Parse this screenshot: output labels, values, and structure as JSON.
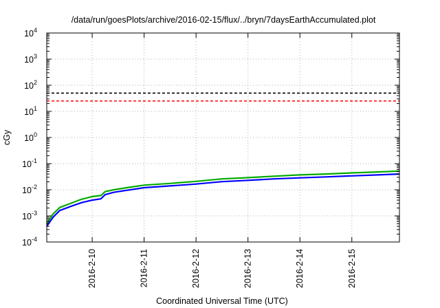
{
  "chart_data": {
    "type": "line",
    "title": "/data/run/goesPlots/archive/2016-02-15/flux/../bryn/7daysEarthAccumulated.plot",
    "xlabel": "Coordinated Universal Time (UTC)",
    "ylabel": "cGy",
    "x_type": "date",
    "xlim": [
      "2016-02-09T03:00",
      "2016-02-15T22:00"
    ],
    "ylim": [
      0.0001,
      10000
    ],
    "y_scale": "log",
    "grid": true,
    "x_ticks": [
      {
        "x": "2016-02-10T00:00",
        "label": "2016-2-10"
      },
      {
        "x": "2016-02-11T00:00",
        "label": "2016-2-11"
      },
      {
        "x": "2016-02-12T00:00",
        "label": "2016-2-12"
      },
      {
        "x": "2016-02-13T00:00",
        "label": "2016-2-13"
      },
      {
        "x": "2016-02-14T00:00",
        "label": "2016-2-14"
      },
      {
        "x": "2016-02-15T00:00",
        "label": "2016-2-15"
      }
    ],
    "y_ticks": [
      {
        "value": 0.0001,
        "base": "10",
        "exp": "-4"
      },
      {
        "value": 0.001,
        "base": "10",
        "exp": "-3"
      },
      {
        "value": 0.01,
        "base": "10",
        "exp": "-2"
      },
      {
        "value": 0.1,
        "base": "10",
        "exp": "-1"
      },
      {
        "value": 1,
        "base": "10",
        "exp": "0"
      },
      {
        "value": 10,
        "base": "10",
        "exp": "1"
      },
      {
        "value": 100,
        "base": "10",
        "exp": "2"
      },
      {
        "value": 1000,
        "base": "10",
        "exp": "3"
      },
      {
        "value": 10000,
        "base": "10",
        "exp": "4"
      }
    ],
    "reference_lines": [
      {
        "y": 50,
        "color": "#000000",
        "style": "dashed"
      },
      {
        "y": 25,
        "color": "#ff0000",
        "style": "dashed"
      }
    ],
    "series": [
      {
        "color": "#00aa00",
        "points": [
          {
            "x": "2016-02-09T03:00",
            "y": 0.0005
          },
          {
            "x": "2016-02-09T06:00",
            "y": 0.0012
          },
          {
            "x": "2016-02-09T09:00",
            "y": 0.0021
          },
          {
            "x": "2016-02-09T14:00",
            "y": 0.003
          },
          {
            "x": "2016-02-09T19:00",
            "y": 0.0043
          },
          {
            "x": "2016-02-10T00:00",
            "y": 0.0055
          },
          {
            "x": "2016-02-10T04:00",
            "y": 0.006
          },
          {
            "x": "2016-02-10T06:00",
            "y": 0.0085
          },
          {
            "x": "2016-02-10T10:00",
            "y": 0.01
          },
          {
            "x": "2016-02-10T16:00",
            "y": 0.012
          },
          {
            "x": "2016-02-11T00:00",
            "y": 0.015
          },
          {
            "x": "2016-02-11T12:00",
            "y": 0.0175
          },
          {
            "x": "2016-02-12T00:00",
            "y": 0.021
          },
          {
            "x": "2016-02-12T12:00",
            "y": 0.026
          },
          {
            "x": "2016-02-13T00:00",
            "y": 0.029
          },
          {
            "x": "2016-02-13T12:00",
            "y": 0.033
          },
          {
            "x": "2016-02-14T00:00",
            "y": 0.037
          },
          {
            "x": "2016-02-14T12:00",
            "y": 0.04
          },
          {
            "x": "2016-02-15T00:00",
            "y": 0.044
          },
          {
            "x": "2016-02-15T12:00",
            "y": 0.048
          },
          {
            "x": "2016-02-15T22:00",
            "y": 0.052
          }
        ]
      },
      {
        "color": "#0000ff",
        "points": [
          {
            "x": "2016-02-09T03:00",
            "y": 0.0004
          },
          {
            "x": "2016-02-09T06:00",
            "y": 0.0009
          },
          {
            "x": "2016-02-09T09:00",
            "y": 0.0016
          },
          {
            "x": "2016-02-09T14:00",
            "y": 0.0023
          },
          {
            "x": "2016-02-09T19:00",
            "y": 0.0032
          },
          {
            "x": "2016-02-10T00:00",
            "y": 0.004
          },
          {
            "x": "2016-02-10T04:00",
            "y": 0.0045
          },
          {
            "x": "2016-02-10T06:00",
            "y": 0.0065
          },
          {
            "x": "2016-02-10T10:00",
            "y": 0.008
          },
          {
            "x": "2016-02-10T16:00",
            "y": 0.0095
          },
          {
            "x": "2016-02-11T00:00",
            "y": 0.012
          },
          {
            "x": "2016-02-11T12:00",
            "y": 0.014
          },
          {
            "x": "2016-02-12T00:00",
            "y": 0.0165
          },
          {
            "x": "2016-02-12T12:00",
            "y": 0.0205
          },
          {
            "x": "2016-02-13T00:00",
            "y": 0.023
          },
          {
            "x": "2016-02-13T12:00",
            "y": 0.026
          },
          {
            "x": "2016-02-14T00:00",
            "y": 0.0285
          },
          {
            "x": "2016-02-14T12:00",
            "y": 0.031
          },
          {
            "x": "2016-02-15T00:00",
            "y": 0.034
          },
          {
            "x": "2016-02-15T12:00",
            "y": 0.037
          },
          {
            "x": "2016-02-15T22:00",
            "y": 0.04
          }
        ]
      }
    ]
  }
}
